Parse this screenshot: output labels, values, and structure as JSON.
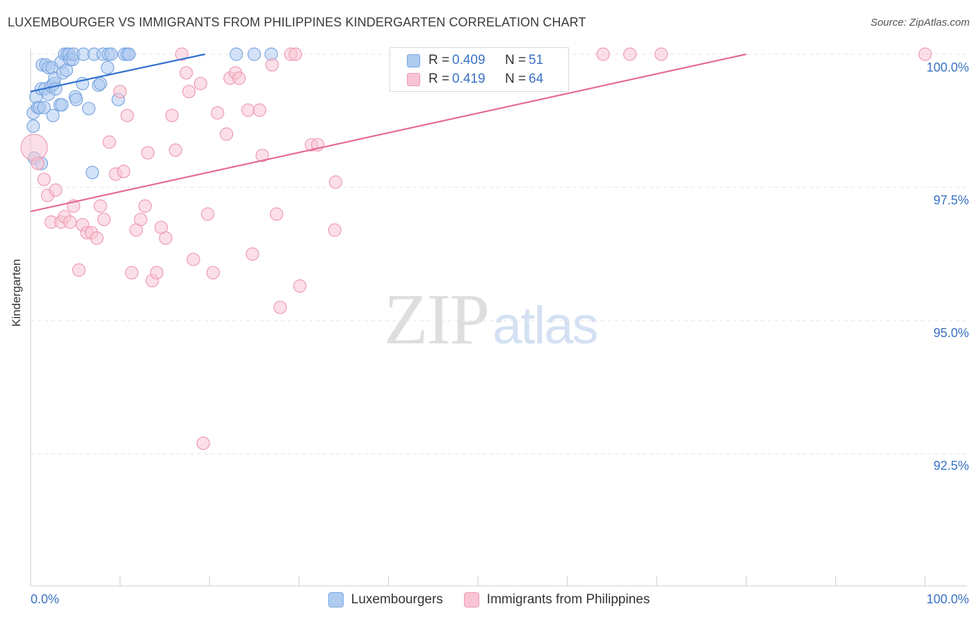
{
  "header": {
    "title": "LUXEMBOURGER VS IMMIGRANTS FROM PHILIPPINES KINDERGARTEN CORRELATION CHART",
    "source": "Source: ZipAtlas.com"
  },
  "watermark": {
    "zip": "ZIP",
    "atlas": "atlas"
  },
  "legend_stats": {
    "r_label": "R =",
    "n_label": "N =",
    "series": [
      {
        "name": "Luxembourgers",
        "r": "0.409",
        "n": "51",
        "fill": "#aecbf0",
        "stroke": "#7aa6e0"
      },
      {
        "name": "Immigrants from Philippines",
        "r": "0.419",
        "n": "64",
        "fill": "#f8c4d3",
        "stroke": "#ee9ab4"
      }
    ]
  },
  "colors": {
    "blue_line": "#2f6fce",
    "pink_line": "#e56b95",
    "tick_text": "#3a72c4",
    "grid": "#e5e5e5"
  },
  "chart_data": {
    "type": "scatter",
    "title": "LUXEMBOURGER VS IMMIGRANTS FROM PHILIPPINES KINDERGARTEN CORRELATION CHART",
    "xlabel": "",
    "ylabel": "Kindergarten",
    "xlim": [
      0,
      100
    ],
    "ylim": [
      90.0,
      100.4
    ],
    "x_tick_labels": [
      "0.0%",
      "100.0%"
    ],
    "y_ticks": [
      100.0,
      97.5,
      95.0,
      92.5
    ],
    "y_tick_labels": [
      "100.0%",
      "97.5%",
      "95.0%",
      "92.5%"
    ],
    "grid": true,
    "legend": "bottom-center",
    "series": [
      {
        "name": "Luxembourgers",
        "r": 0.409,
        "n": 51,
        "trend": {
          "x": [
            0,
            19.5
          ],
          "y": [
            99.3,
            100.0
          ]
        },
        "points": [
          {
            "x": 0.3,
            "y": 98.9
          },
          {
            "x": 0.3,
            "y": 98.65
          },
          {
            "x": 0.4,
            "y": 98.05
          },
          {
            "x": 0.8,
            "y": 99.0
          },
          {
            "x": 0.6,
            "y": 99.2
          },
          {
            "x": 1.0,
            "y": 99.0
          },
          {
            "x": 1.2,
            "y": 99.35
          },
          {
            "x": 1.2,
            "y": 97.95
          },
          {
            "x": 1.3,
            "y": 99.8
          },
          {
            "x": 1.6,
            "y": 99.35
          },
          {
            "x": 1.5,
            "y": 99.0
          },
          {
            "x": 1.7,
            "y": 99.8
          },
          {
            "x": 2.0,
            "y": 99.75
          },
          {
            "x": 2.0,
            "y": 99.25
          },
          {
            "x": 2.4,
            "y": 99.75
          },
          {
            "x": 2.3,
            "y": 99.4
          },
          {
            "x": 2.5,
            "y": 98.85
          },
          {
            "x": 2.6,
            "y": 99.45
          },
          {
            "x": 2.7,
            "y": 99.55
          },
          {
            "x": 2.8,
            "y": 99.35
          },
          {
            "x": 3.3,
            "y": 99.05
          },
          {
            "x": 3.4,
            "y": 99.85
          },
          {
            "x": 3.5,
            "y": 99.05
          },
          {
            "x": 3.6,
            "y": 99.65
          },
          {
            "x": 3.8,
            "y": 100.0
          },
          {
            "x": 4.0,
            "y": 99.7
          },
          {
            "x": 4.1,
            "y": 100.0
          },
          {
            "x": 4.3,
            "y": 100.0
          },
          {
            "x": 4.4,
            "y": 99.9
          },
          {
            "x": 4.7,
            "y": 99.9
          },
          {
            "x": 4.8,
            "y": 100.0
          },
          {
            "x": 5.0,
            "y": 99.2
          },
          {
            "x": 5.1,
            "y": 99.15
          },
          {
            "x": 5.8,
            "y": 99.45
          },
          {
            "x": 5.9,
            "y": 100.0
          },
          {
            "x": 6.5,
            "y": 98.98
          },
          {
            "x": 6.9,
            "y": 97.78
          },
          {
            "x": 7.1,
            "y": 100.0
          },
          {
            "x": 7.6,
            "y": 99.42
          },
          {
            "x": 7.8,
            "y": 99.45
          },
          {
            "x": 8.1,
            "y": 100.0
          },
          {
            "x": 8.6,
            "y": 99.75
          },
          {
            "x": 8.7,
            "y": 100.0
          },
          {
            "x": 9.0,
            "y": 100.0
          },
          {
            "x": 9.8,
            "y": 99.15
          },
          {
            "x": 10.5,
            "y": 100.0
          },
          {
            "x": 10.8,
            "y": 100.0
          },
          {
            "x": 11.0,
            "y": 100.0
          },
          {
            "x": 23.0,
            "y": 100.0
          },
          {
            "x": 25.0,
            "y": 100.0
          },
          {
            "x": 26.9,
            "y": 100.0
          }
        ]
      },
      {
        "name": "Immigrants from Philippines",
        "r": 0.419,
        "n": 64,
        "trend": {
          "x": [
            0,
            80.0
          ],
          "y": [
            97.05,
            100.0
          ]
        },
        "points": [
          {
            "x": 0.4,
            "y": 98.25,
            "big": true
          },
          {
            "x": 0.8,
            "y": 97.95
          },
          {
            "x": 1.5,
            "y": 97.65
          },
          {
            "x": 1.9,
            "y": 97.35
          },
          {
            "x": 2.3,
            "y": 96.85
          },
          {
            "x": 2.8,
            "y": 97.45
          },
          {
            "x": 3.4,
            "y": 96.85
          },
          {
            "x": 3.8,
            "y": 96.95
          },
          {
            "x": 4.4,
            "y": 96.85
          },
          {
            "x": 4.8,
            "y": 97.15
          },
          {
            "x": 5.4,
            "y": 95.95
          },
          {
            "x": 5.8,
            "y": 96.8
          },
          {
            "x": 6.3,
            "y": 96.65
          },
          {
            "x": 6.8,
            "y": 96.65
          },
          {
            "x": 7.4,
            "y": 96.55
          },
          {
            "x": 7.8,
            "y": 97.15
          },
          {
            "x": 8.2,
            "y": 96.9
          },
          {
            "x": 8.8,
            "y": 98.35
          },
          {
            "x": 9.5,
            "y": 97.75
          },
          {
            "x": 10.0,
            "y": 99.3
          },
          {
            "x": 10.4,
            "y": 97.8
          },
          {
            "x": 10.8,
            "y": 98.85
          },
          {
            "x": 11.3,
            "y": 95.9
          },
          {
            "x": 11.8,
            "y": 96.7
          },
          {
            "x": 12.3,
            "y": 96.9
          },
          {
            "x": 12.8,
            "y": 97.15
          },
          {
            "x": 13.1,
            "y": 98.15
          },
          {
            "x": 13.6,
            "y": 95.75
          },
          {
            "x": 14.1,
            "y": 95.9
          },
          {
            "x": 14.6,
            "y": 96.75
          },
          {
            "x": 15.1,
            "y": 96.55
          },
          {
            "x": 15.8,
            "y": 98.85
          },
          {
            "x": 16.2,
            "y": 98.2
          },
          {
            "x": 16.9,
            "y": 100.0
          },
          {
            "x": 17.4,
            "y": 99.65
          },
          {
            "x": 17.7,
            "y": 99.3
          },
          {
            "x": 18.2,
            "y": 96.15
          },
          {
            "x": 19.0,
            "y": 99.45
          },
          {
            "x": 19.3,
            "y": 92.7
          },
          {
            "x": 19.8,
            "y": 97.0
          },
          {
            "x": 20.4,
            "y": 95.9
          },
          {
            "x": 20.9,
            "y": 98.9
          },
          {
            "x": 21.9,
            "y": 98.5
          },
          {
            "x": 22.3,
            "y": 99.55
          },
          {
            "x": 22.9,
            "y": 99.65
          },
          {
            "x": 23.3,
            "y": 99.55
          },
          {
            "x": 24.3,
            "y": 98.95
          },
          {
            "x": 24.8,
            "y": 96.25
          },
          {
            "x": 25.6,
            "y": 98.95
          },
          {
            "x": 25.9,
            "y": 98.1
          },
          {
            "x": 27.0,
            "y": 99.8
          },
          {
            "x": 27.5,
            "y": 97.0
          },
          {
            "x": 27.9,
            "y": 95.25
          },
          {
            "x": 29.1,
            "y": 100.0
          },
          {
            "x": 29.6,
            "y": 100.0
          },
          {
            "x": 30.1,
            "y": 95.65
          },
          {
            "x": 31.4,
            "y": 98.3
          },
          {
            "x": 32.1,
            "y": 98.3
          },
          {
            "x": 34.0,
            "y": 96.7
          },
          {
            "x": 34.1,
            "y": 97.6
          },
          {
            "x": 64.0,
            "y": 100.0
          },
          {
            "x": 67.0,
            "y": 100.0
          },
          {
            "x": 70.5,
            "y": 100.0
          },
          {
            "x": 100.0,
            "y": 100.0
          }
        ]
      }
    ]
  }
}
